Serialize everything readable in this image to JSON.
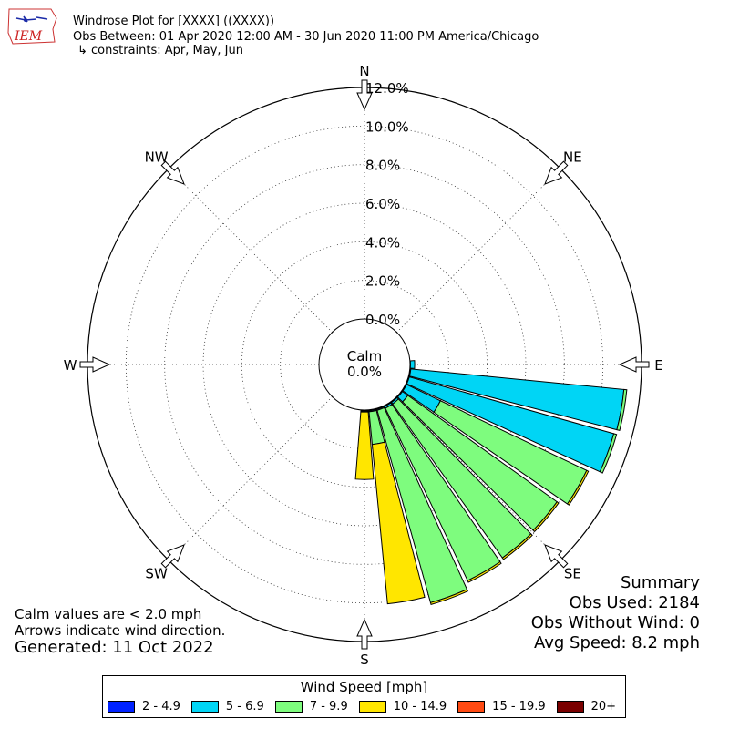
{
  "header": {
    "title": "Windrose Plot for [XXXX] ((XXXX))",
    "obs_between": "Obs Between: 01 Apr 2020 12:00 AM - 30 Jun 2020 11:00 PM America/Chicago",
    "constraints": "↳ constraints: Apr, May, Jun",
    "logo_text": "IEM"
  },
  "chart_data": {
    "type": "windrose",
    "rmax": 12.0,
    "ring_labels": [
      "0.0%",
      "2.0%",
      "4.0%",
      "6.0%",
      "8.0%",
      "10.0%",
      "12.0%"
    ],
    "directions": [
      {
        "label": "N",
        "angle": 0
      },
      {
        "label": "NE",
        "angle": 45
      },
      {
        "label": "E",
        "angle": 90
      },
      {
        "label": "SE",
        "angle": 135
      },
      {
        "label": "S",
        "angle": 180
      },
      {
        "label": "SW",
        "angle": 225
      },
      {
        "label": "W",
        "angle": 270
      },
      {
        "label": "NW",
        "angle": 315
      }
    ],
    "calm": {
      "label": "Calm",
      "value": "0.0%"
    },
    "bins": [
      {
        "name": "2 - 4.9",
        "color": "#0022ff"
      },
      {
        "name": "5 - 6.9",
        "color": "#00d5f5"
      },
      {
        "name": "7 - 9.9",
        "color": "#7efc7e"
      },
      {
        "name": "10 - 14.9",
        "color": "#ffe600"
      },
      {
        "name": "15 - 19.9",
        "color": "#ff4a12"
      },
      {
        "name": "20+",
        "color": "#7a0000"
      }
    ],
    "sectors": [
      {
        "angle": 90,
        "values": [
          0.02,
          0.22,
          0.0,
          0.0,
          0.0,
          0.0
        ]
      },
      {
        "angle": 100,
        "values": [
          0.05,
          11.1,
          0.15,
          0.0,
          0.0,
          0.0
        ]
      },
      {
        "angle": 110,
        "values": [
          0.05,
          11.0,
          0.15,
          0.0,
          0.0,
          0.0
        ]
      },
      {
        "angle": 120,
        "values": [
          0.05,
          1.95,
          8.4,
          0.1,
          0.0,
          0.0
        ]
      },
      {
        "angle": 130,
        "values": [
          0.05,
          0.35,
          9.5,
          0.1,
          0.0,
          0.0
        ]
      },
      {
        "angle": 140,
        "values": [
          0.05,
          0.1,
          9.8,
          0.1,
          0.0,
          0.0
        ]
      },
      {
        "angle": 150,
        "values": [
          0.05,
          0.1,
          9.9,
          0.1,
          0.0,
          0.0
        ]
      },
      {
        "angle": 160,
        "values": [
          0.05,
          0.05,
          10.35,
          0.1,
          0.0,
          0.0
        ]
      },
      {
        "angle": 170,
        "values": [
          0.05,
          0.05,
          1.7,
          8.3,
          0.0,
          0.0
        ]
      },
      {
        "angle": 180,
        "values": [
          0.05,
          0.05,
          0.0,
          3.5,
          0.0,
          0.0
        ]
      }
    ]
  },
  "notes": {
    "calm_note": "Calm values are < 2.0 mph",
    "arrows_note": "Arrows indicate wind direction.",
    "generated": "Generated: 11 Oct 2022"
  },
  "summary": {
    "title": "Summary",
    "obs_used": "Obs Used: 2184",
    "obs_without_wind": "Obs Without Wind: 0",
    "avg_speed": "Avg Speed: 8.2 mph"
  },
  "legend": {
    "title": "Wind Speed [mph]"
  }
}
